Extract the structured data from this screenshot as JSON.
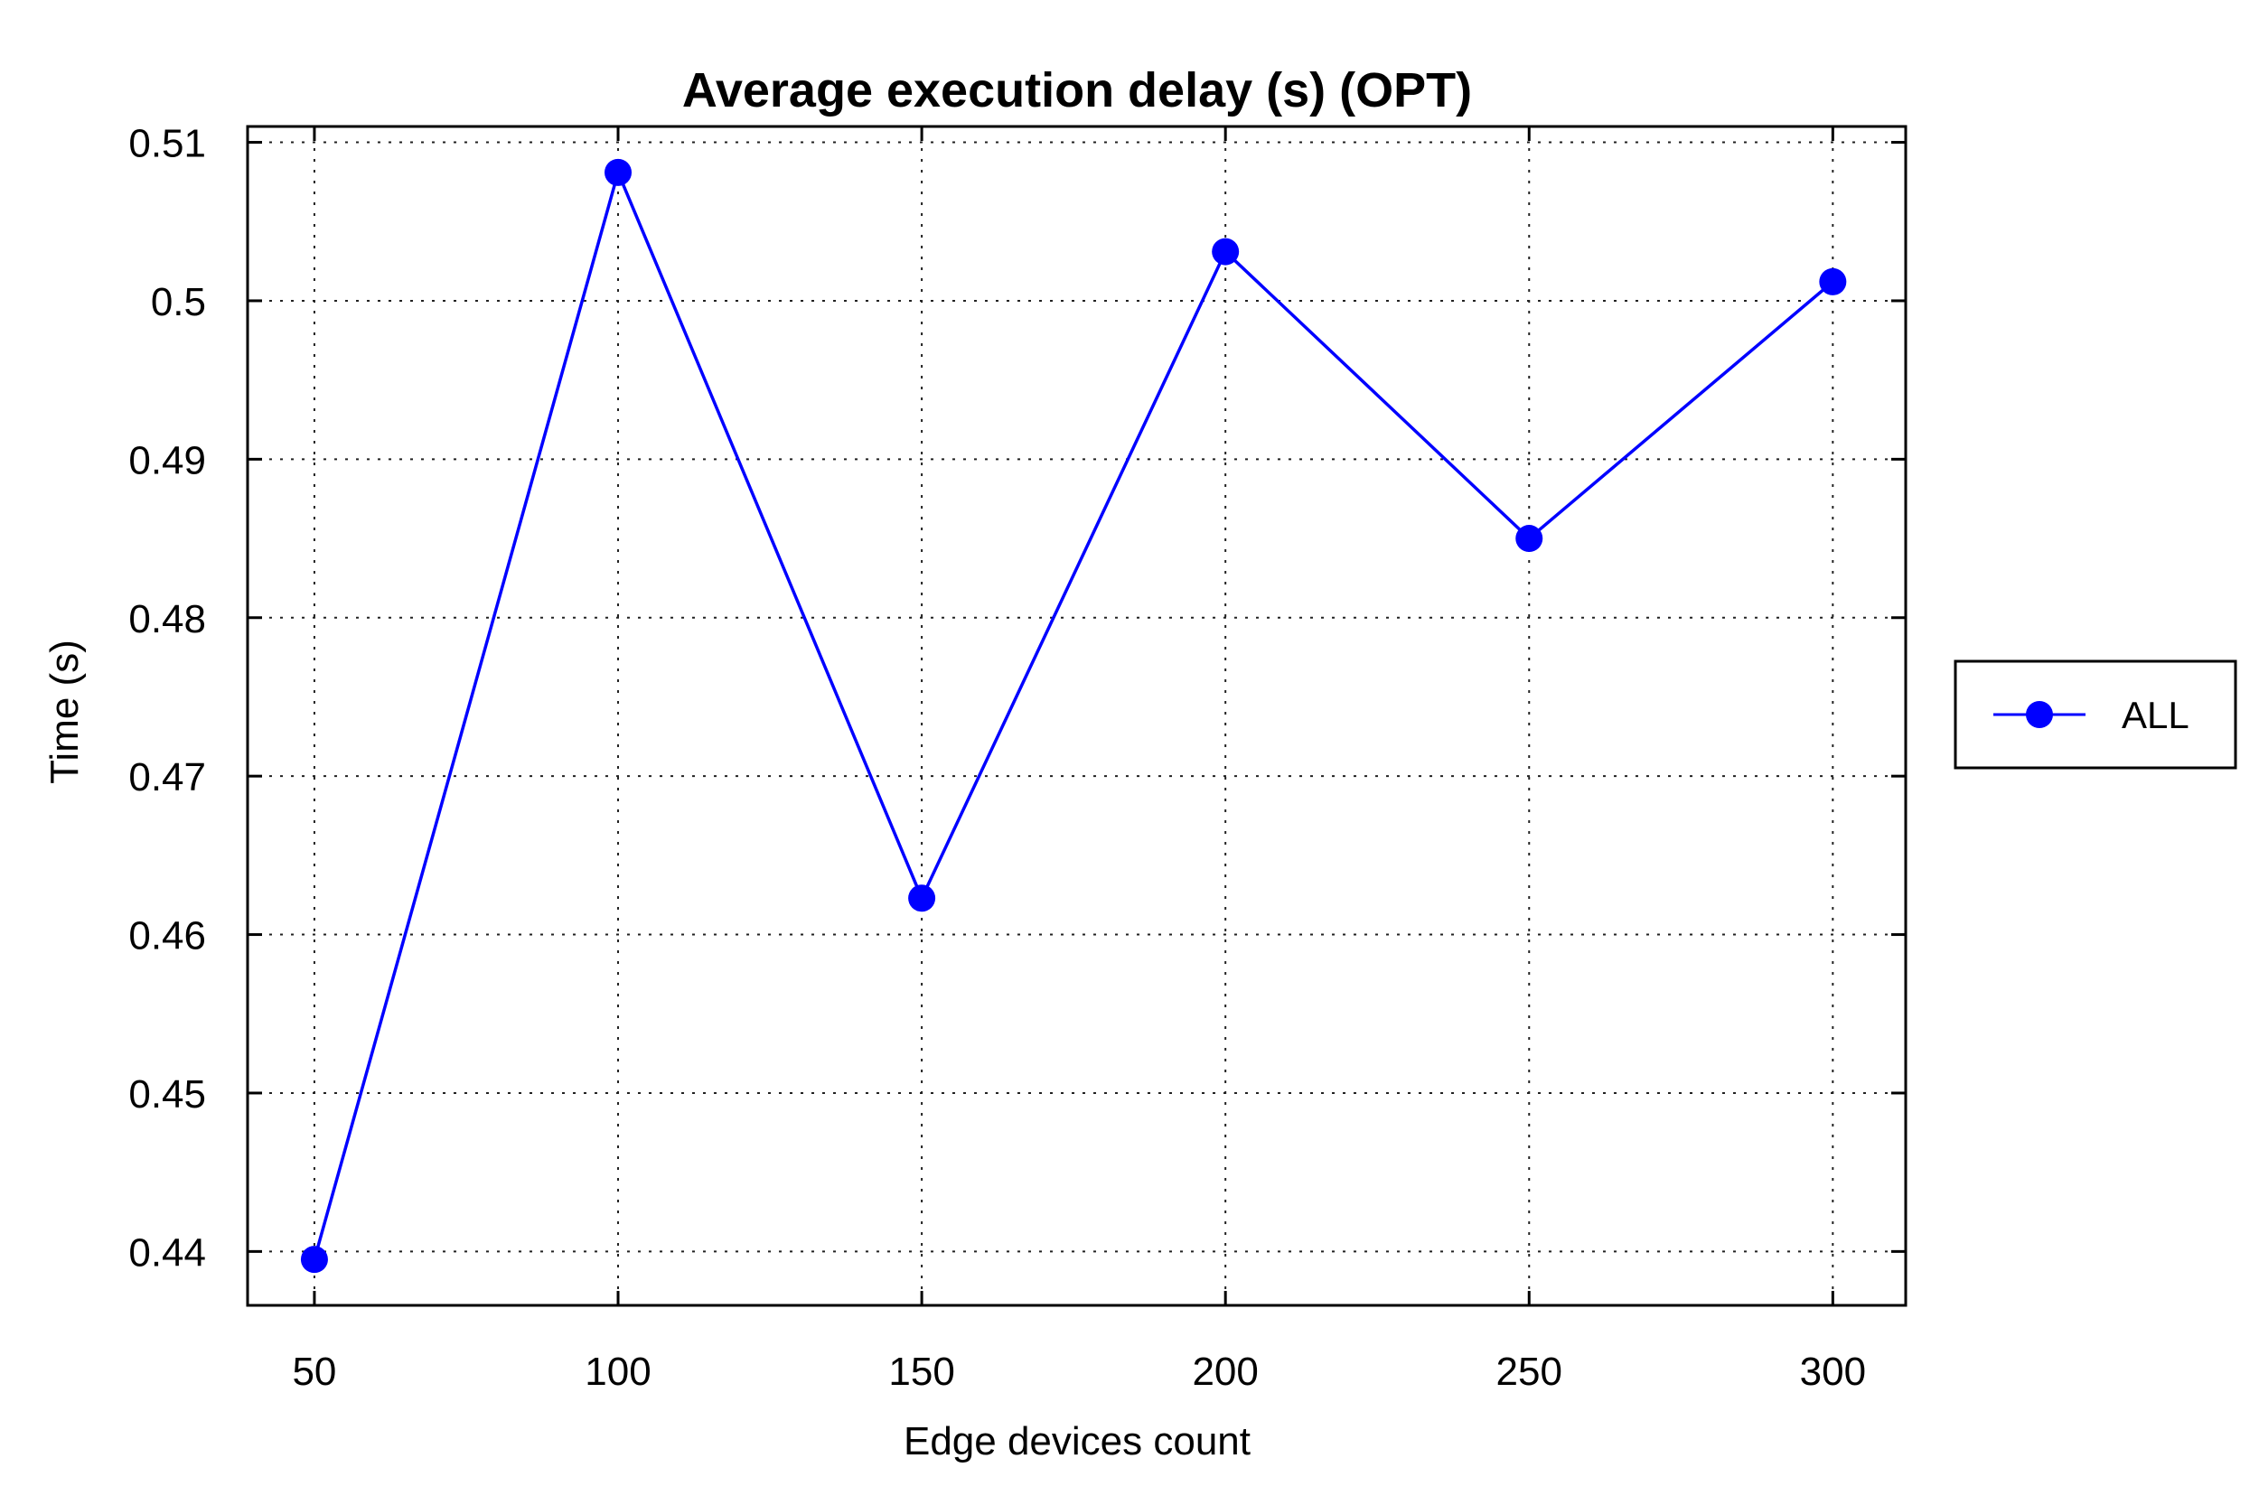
{
  "chart_data": {
    "type": "line",
    "title": "Average execution delay (s) (OPT)",
    "xlabel": "Edge devices count",
    "ylabel": "Time (s)",
    "x": [
      50,
      100,
      150,
      200,
      250,
      300
    ],
    "x_tick_labels": [
      "50",
      "100",
      "150",
      "200",
      "250",
      "300"
    ],
    "xlim": [
      39,
      312
    ],
    "ylim": [
      0.4366,
      0.511
    ],
    "y_ticks": [
      0.44,
      0.45,
      0.46,
      0.47,
      0.48,
      0.49,
      0.5,
      0.51
    ],
    "y_tick_labels": [
      "0.44",
      "0.45",
      "0.46",
      "0.47",
      "0.48",
      "0.49",
      "0.5",
      "0.51"
    ],
    "grid": true,
    "legend_position": "outside-right",
    "series": [
      {
        "name": "ALL",
        "color": "#0000ff",
        "marker": "circle",
        "values": [
          0.4395,
          0.5081,
          0.4623,
          0.5031,
          0.485,
          0.5012
        ]
      }
    ]
  }
}
